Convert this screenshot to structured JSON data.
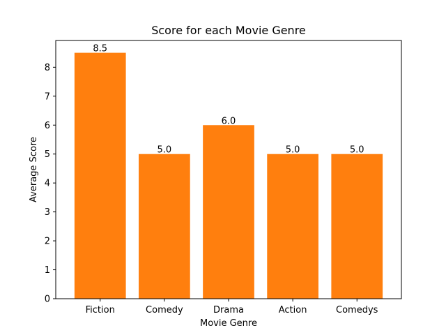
{
  "chart_data": {
    "type": "bar",
    "title": "Score for each Movie Genre",
    "xlabel": "Movie Genre",
    "ylabel": "Average Score",
    "categories": [
      "Fiction",
      "Comedy",
      "Drama",
      "Action",
      "Comedys"
    ],
    "values": [
      8.5,
      5.0,
      6.0,
      5.0,
      5.0
    ],
    "value_labels": [
      "8.5",
      "5.0",
      "6.0",
      "5.0",
      "5.0"
    ],
    "ylim": [
      0,
      8.925
    ],
    "yticks": [
      0,
      1,
      2,
      3,
      4,
      5,
      6,
      7,
      8
    ],
    "bar_color": "#ff7f0e",
    "grid": false,
    "legend": "none"
  }
}
